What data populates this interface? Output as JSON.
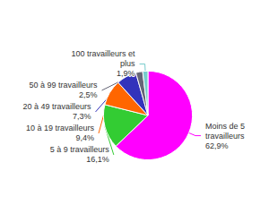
{
  "chart_data": {
    "type": "pie",
    "categories": [
      "Moins de 5\ntravailleurs",
      "5 à 9 travailleurs",
      "10 à 19 travailleurs",
      "20 à 49 travailleurs",
      "50 à 99 travailleurs",
      "100 travailleurs et\nplus"
    ],
    "values": [
      62.9,
      16.1,
      9.4,
      7.3,
      2.5,
      1.9
    ],
    "value_labels": [
      "62,9%",
      "16,1%",
      "9,4%",
      "7,3%",
      "2,5%",
      "1,9%"
    ],
    "colors": [
      "#ff00ff",
      "#33cc33",
      "#ff6600",
      "#3333bb",
      "#666677",
      "#77cccc"
    ],
    "data_labels": true
  }
}
